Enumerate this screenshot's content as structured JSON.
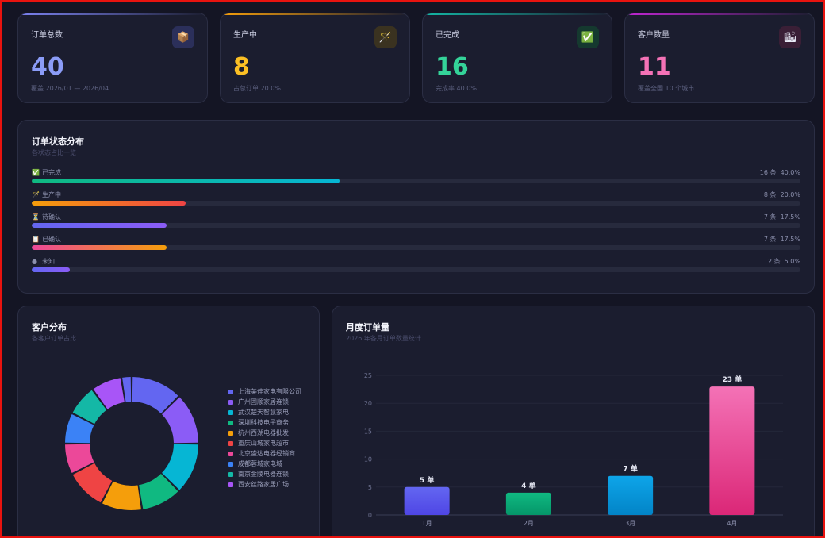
{
  "stats": [
    {
      "label": "订单总数",
      "value": "40",
      "sub": "覆盖 2026/01 — 2026/04",
      "icon": "package-icon",
      "glyph": "📦",
      "color": "#8b9cf7",
      "line": "#7c83f2",
      "icon_bg": "#2b2f5a"
    },
    {
      "label": "生产中",
      "value": "8",
      "sub": "占总订单 20.0%",
      "icon": "wand-icon",
      "glyph": "🪄",
      "color": "#fbbf24",
      "line": "#f59e0b",
      "icon_bg": "#3a3220"
    },
    {
      "label": "已完成",
      "value": "16",
      "sub": "完成率 40.0%",
      "icon": "check-icon",
      "glyph": "✅",
      "color": "#34d399",
      "line": "#14b8a6",
      "icon_bg": "#15392f"
    },
    {
      "label": "客户数量",
      "value": "11",
      "sub": "覆盖全国 10 个城市",
      "icon": "city-icon",
      "glyph": "🏙",
      "color": "#f472b6",
      "line": "#c026d3",
      "icon_bg": "#3a1f36"
    }
  ],
  "status": {
    "title": "订单状态分布",
    "subtitle": "各状态占比一览",
    "rows": [
      {
        "icon": "check-icon",
        "glyph": "✅",
        "label": "已完成",
        "count": "16 条",
        "pct": "40.0%",
        "fraction": 0.4,
        "grad": [
          "#10b981",
          "#06b6d4"
        ]
      },
      {
        "icon": "wand-icon",
        "glyph": "🪄",
        "label": "生产中",
        "count": "8 条",
        "pct": "20.0%",
        "fraction": 0.2,
        "grad": [
          "#f59e0b",
          "#ef4444"
        ]
      },
      {
        "icon": "hourglass-icon",
        "glyph": "⏳",
        "label": "待确认",
        "count": "7 条",
        "pct": "17.5%",
        "fraction": 0.175,
        "grad": [
          "#6366f1",
          "#8b5cf6"
        ]
      },
      {
        "icon": "clipboard-icon",
        "glyph": "📋",
        "label": "已确认",
        "count": "7 条",
        "pct": "17.5%",
        "fraction": 0.175,
        "grad": [
          "#ec4899",
          "#f59e0b"
        ]
      },
      {
        "icon": "dot-icon",
        "glyph": "●",
        "label": "未知",
        "count": "2 条",
        "pct": "5.0%",
        "fraction": 0.05,
        "grad": [
          "#6366f1",
          "#8b5cf6"
        ]
      }
    ]
  },
  "customers": {
    "title": "客户分布",
    "subtitle": "各客户订单占比",
    "items": [
      {
        "name": "上海美佳家电有限公司",
        "color": "#6366f1",
        "value": 5
      },
      {
        "name": "广州固顺家居连锁",
        "color": "#8b5cf6",
        "value": 5
      },
      {
        "name": "武汉楚天智慧家电",
        "color": "#06b6d4",
        "value": 5
      },
      {
        "name": "深圳科技电子商务",
        "color": "#10b981",
        "value": 4
      },
      {
        "name": "杭州西湖电器批发",
        "color": "#f59e0b",
        "value": 4
      },
      {
        "name": "重庆山城家电超市",
        "color": "#ef4444",
        "value": 4
      },
      {
        "name": "北京盛达电器经销商",
        "color": "#ec4899",
        "value": 3
      },
      {
        "name": "成都蓉城家电城",
        "color": "#3b82f6",
        "value": 3
      },
      {
        "name": "南京金陵电器连锁",
        "color": "#14b8a6",
        "value": 3
      },
      {
        "name": "西安丝路家居广场",
        "color": "#a855f7",
        "value": 3
      },
      {
        "name": "",
        "color": "#6366f1",
        "value": 1
      }
    ]
  },
  "monthly": {
    "title": "月度订单量",
    "subtitle": "2026 年各月订单数量统计"
  },
  "chart_data": {
    "type": "bar",
    "categories": [
      "1月",
      "2月",
      "3月",
      "4月"
    ],
    "values": [
      5,
      4,
      7,
      23
    ],
    "value_labels": [
      "5 单",
      "4 单",
      "7 单",
      "23 单"
    ],
    "colors": [
      [
        "#6366f1",
        "#4f46e5"
      ],
      [
        "#10b981",
        "#059669"
      ],
      [
        "#0ea5e9",
        "#0284c7"
      ],
      [
        "#f472b6",
        "#db2777"
      ]
    ],
    "yticks": [
      "0",
      "5",
      "10",
      "15",
      "20",
      "25"
    ],
    "ylim": [
      0,
      25
    ],
    "grid": true
  }
}
